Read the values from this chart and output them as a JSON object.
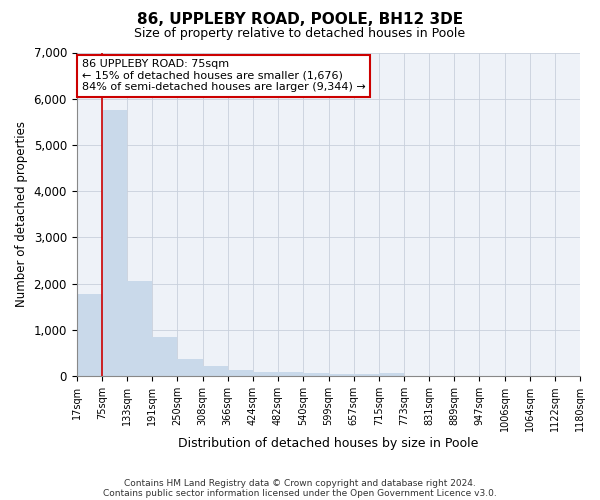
{
  "title": "86, UPPLEBY ROAD, POOLE, BH12 3DE",
  "subtitle": "Size of property relative to detached houses in Poole",
  "xlabel": "Distribution of detached houses by size in Poole",
  "ylabel": "Number of detached properties",
  "footnote1": "Contains HM Land Registry data © Crown copyright and database right 2024.",
  "footnote2": "Contains public sector information licensed under the Open Government Licence v3.0.",
  "annotation_title": "86 UPPLEBY ROAD: 75sqm",
  "annotation_line2": "← 15% of detached houses are smaller (1,676)",
  "annotation_line3": "84% of semi-detached houses are larger (9,344) →",
  "property_size": 75,
  "bar_color": "#c9d9ea",
  "bar_edge_color": "none",
  "red_line_color": "#cc0000",
  "background_color": "#eef2f8",
  "grid_color": "#c8d0dc",
  "bins": [
    17,
    75,
    133,
    191,
    250,
    308,
    366,
    424,
    482,
    540,
    599,
    657,
    715,
    773,
    831,
    889,
    947,
    1006,
    1064,
    1122,
    1180
  ],
  "counts": [
    1780,
    5750,
    2060,
    840,
    370,
    230,
    140,
    100,
    85,
    60,
    55,
    55,
    60,
    0,
    0,
    0,
    0,
    0,
    0,
    0
  ],
  "ylim": [
    0,
    7000
  ],
  "yticks": [
    0,
    1000,
    2000,
    3000,
    4000,
    5000,
    6000,
    7000
  ],
  "annotation_box_color": "#ffffff",
  "annotation_box_edge": "#cc0000",
  "title_fontsize": 11,
  "subtitle_fontsize": 9,
  "ylabel_fontsize": 8.5,
  "xlabel_fontsize": 9,
  "ytick_fontsize": 8.5,
  "xtick_fontsize": 7,
  "footnote_fontsize": 6.5,
  "ann_fontsize": 8
}
